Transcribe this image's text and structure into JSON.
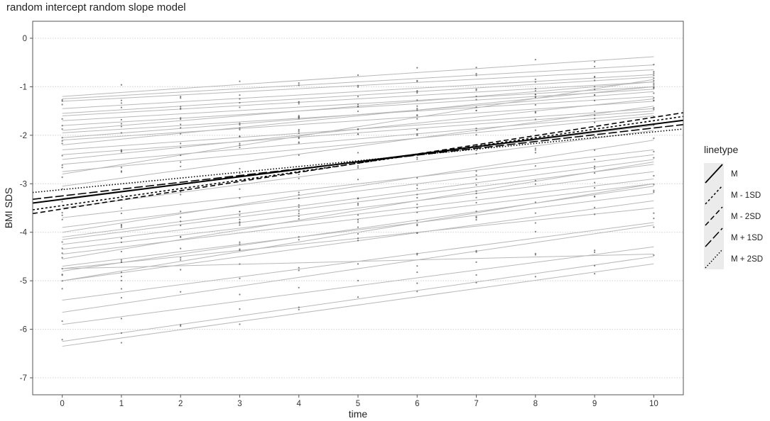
{
  "chart_data": {
    "type": "line",
    "title": "random intercept random slope model",
    "xlabel": "time",
    "ylabel": "BMI SDS",
    "xlim": [
      -0.5,
      10.5
    ],
    "ylim": [
      -7.35,
      0.35
    ],
    "x_ticks": [
      "0",
      "1",
      "2",
      "3",
      "4",
      "5",
      "6",
      "7",
      "8",
      "9",
      "10"
    ],
    "y_ticks": [
      "0",
      "-1",
      "-2",
      "-3",
      "-4",
      "-5",
      "-6",
      "-7"
    ],
    "grid": true,
    "legend_title": "linetype",
    "legend_placement": "right",
    "colors": {
      "individual": "#b8b8b8",
      "mean": "#000000",
      "points": "#555555",
      "panel_border": "#555555",
      "grid": "#d0d0d0"
    },
    "individual_lines": [
      [
        -1.2,
        -0.38
      ],
      [
        -1.25,
        -0.55
      ],
      [
        -1.3,
        -0.65
      ],
      [
        -1.45,
        -0.75
      ],
      [
        -1.55,
        -0.8
      ],
      [
        -1.6,
        -0.9
      ],
      [
        -1.7,
        -1.0
      ],
      [
        -1.8,
        -1.05
      ],
      [
        -1.9,
        -0.9
      ],
      [
        -1.95,
        -1.2
      ],
      [
        -2.05,
        -1.1
      ],
      [
        -2.1,
        -1.3
      ],
      [
        -2.2,
        -1.0
      ],
      [
        -2.3,
        -1.45
      ],
      [
        -2.4,
        -1.5
      ],
      [
        -2.5,
        -1.25
      ],
      [
        -2.6,
        -1.55
      ],
      [
        -2.75,
        -1.6
      ],
      [
        -2.8,
        -0.85
      ],
      [
        -3.05,
        -1.4
      ],
      [
        -3.3,
        -1.8
      ],
      [
        -3.5,
        -1.9
      ],
      [
        -3.7,
        -2.3
      ],
      [
        -3.9,
        -2.4
      ],
      [
        -4.0,
        -2.1
      ],
      [
        -4.1,
        -2.5
      ],
      [
        -4.15,
        -2.6
      ],
      [
        -4.25,
        -2.75
      ],
      [
        -4.35,
        -2.9
      ],
      [
        -4.45,
        -3.0
      ],
      [
        -4.55,
        -2.55
      ],
      [
        -4.7,
        -3.2
      ],
      [
        -4.75,
        -3.5
      ],
      [
        -4.8,
        -3.05
      ],
      [
        -5.0,
        -3.35
      ],
      [
        -4.75,
        -4.45
      ],
      [
        -5.0,
        -3.0
      ],
      [
        -5.4,
        -3.8
      ],
      [
        -5.65,
        -3.85
      ],
      [
        -5.9,
        -4.3
      ],
      [
        -6.25,
        -4.5
      ],
      [
        -6.35,
        -4.65
      ]
    ],
    "series": [
      {
        "name": "M",
        "values": [
          -3.32,
          -1.77
        ],
        "dash": ""
      },
      {
        "name": "M - 1SD",
        "values": [
          -3.45,
          -1.7
        ],
        "dash": "3,3"
      },
      {
        "name": "M - 2SD",
        "values": [
          -3.52,
          -1.63
        ],
        "dash": "7,4"
      },
      {
        "name": "M + 1SD",
        "values": [
          -3.25,
          -1.85
        ],
        "dash": "12,4"
      },
      {
        "name": "M + 2SD",
        "values": [
          -3.12,
          -1.93
        ],
        "dash": "1.5,2.5"
      }
    ]
  }
}
